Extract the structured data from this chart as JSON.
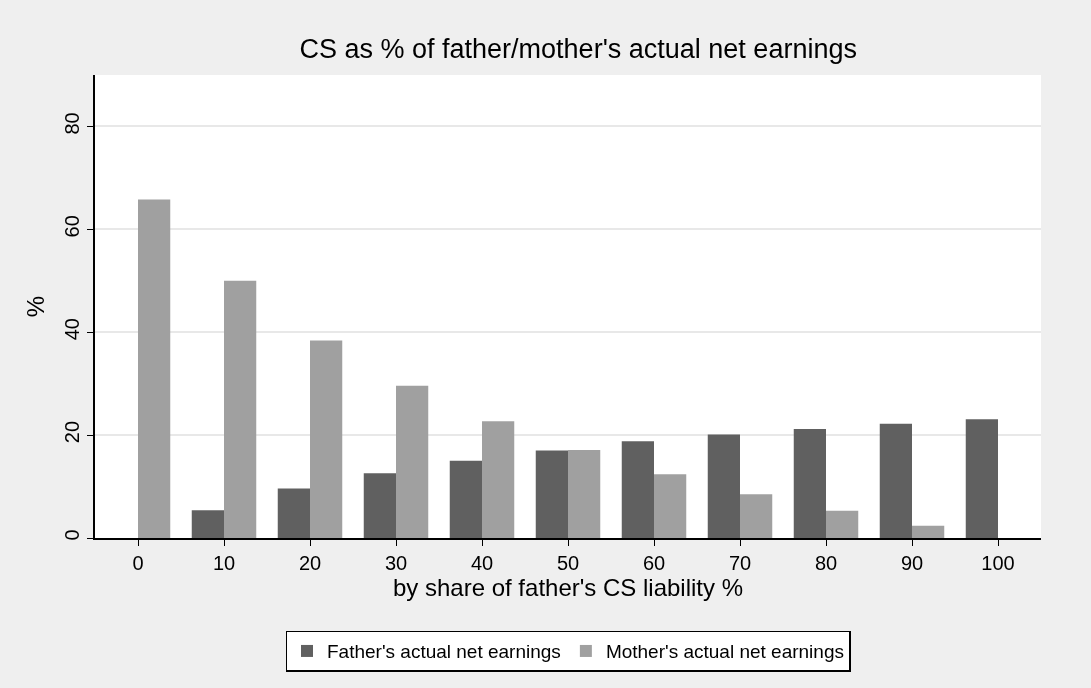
{
  "chart_data": {
    "type": "bar",
    "title": "CS as % of father/mother's actual net earnings",
    "xlabel": "by share of father's CS liability %",
    "ylabel": "%",
    "categories": [
      "0",
      "10",
      "20",
      "30",
      "40",
      "50",
      "60",
      "70",
      "80",
      "90",
      "100"
    ],
    "series": [
      {
        "name": "Father's actual net earnings",
        "color": "#606060",
        "values": [
          0,
          5.4,
          9.6,
          12.6,
          15.0,
          17.0,
          18.8,
          20.1,
          21.2,
          22.2,
          23.1
        ]
      },
      {
        "name": "Mother's actual net earnings",
        "color": "#a0a0a0",
        "values": [
          65.8,
          50.0,
          38.4,
          29.6,
          22.7,
          17.1,
          12.4,
          8.5,
          5.3,
          2.4,
          0
        ]
      }
    ],
    "ylim": [
      0,
      90
    ],
    "yticks": [
      0,
      20,
      40,
      60,
      80
    ],
    "grid": "y",
    "legend": "bottom"
  }
}
